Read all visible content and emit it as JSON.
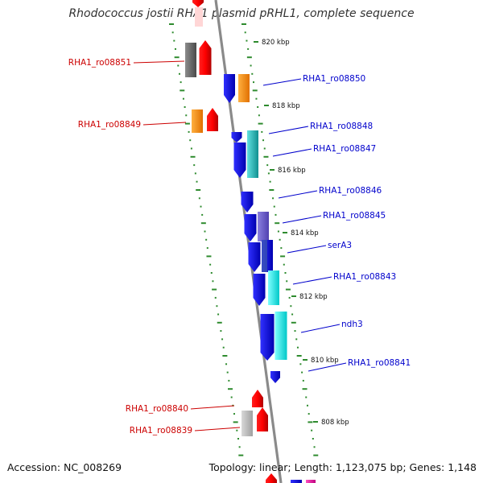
{
  "title": "Rhodococcus jostii RHA1 plasmid pRHL1, complete sequence",
  "accession": "Accession: NC_008269",
  "summary": "Topology: linear; Length: 1,123,075 bp; Genes: 1,148",
  "colors": {
    "axis": "#8a8a8a",
    "tick": "#2e8b2e",
    "label_left": "#cc0000",
    "label_right": "#0000cc",
    "forward_gene": "#ff0000",
    "reverse_gene": "#0000ff"
  },
  "ruler_labels": [
    "820 kbp",
    "818 kbp",
    "816 kbp",
    "814 kbp",
    "812 kbp",
    "810 kbp",
    "808 kbp"
  ],
  "genes_left": [
    "RHA1_ro08851",
    "RHA1_ro08849",
    "RHA1_ro08840",
    "RHA1_ro08839"
  ],
  "genes_right": [
    "RHA1_ro08850",
    "RHA1_ro08848",
    "RHA1_ro08847",
    "RHA1_ro08846",
    "RHA1_ro08845",
    "serA3",
    "RHA1_ro08843",
    "ndh3",
    "RHA1_ro08841"
  ]
}
